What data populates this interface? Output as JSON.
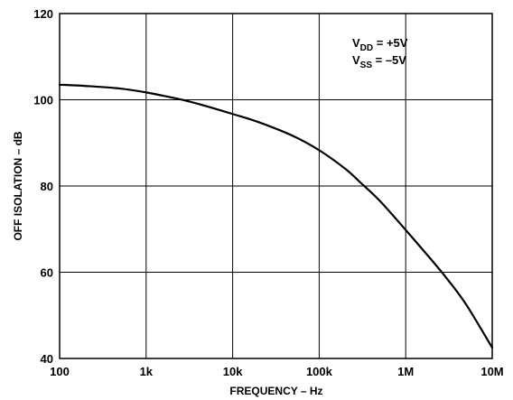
{
  "chart_data": {
    "type": "line",
    "xlabel": "FREQUENCY – Hz",
    "ylabel": "OFF ISOLATION – dB",
    "x_scale": "log",
    "xlim": [
      100,
      10000000
    ],
    "ylim": [
      40,
      120
    ],
    "grid": true,
    "x_ticks": [
      {
        "value": 100,
        "label": "100"
      },
      {
        "value": 1000,
        "label": "1k"
      },
      {
        "value": 10000,
        "label": "10k"
      },
      {
        "value": 100000,
        "label": "100k"
      },
      {
        "value": 1000000,
        "label": "1M"
      },
      {
        "value": 10000000,
        "label": "10M"
      }
    ],
    "y_ticks": [
      {
        "value": 40,
        "label": "40"
      },
      {
        "value": 60,
        "label": "60"
      },
      {
        "value": 80,
        "label": "80"
      },
      {
        "value": 100,
        "label": "100"
      },
      {
        "value": 120,
        "label": "120"
      }
    ],
    "series": [
      {
        "x": [
          100,
          200,
          500,
          1000,
          2000,
          3000,
          5000,
          10000,
          20000,
          50000,
          100000,
          200000,
          300000,
          500000,
          1000000,
          2000000,
          3000000,
          5000000,
          10000000
        ],
        "y": [
          103.5,
          103.2,
          102.6,
          101.7,
          100.5,
          99.7,
          98.5,
          96.7,
          94.8,
          91.6,
          88.3,
          84.0,
          80.8,
          76.6,
          69.8,
          62.8,
          58.5,
          52.5,
          42.5
        ]
      }
    ],
    "annotations": [
      {
        "base": "V",
        "sub": "DD",
        "rest": " = +5V"
      },
      {
        "base": "V",
        "sub": "SS",
        "rest": " = –5V"
      }
    ]
  }
}
